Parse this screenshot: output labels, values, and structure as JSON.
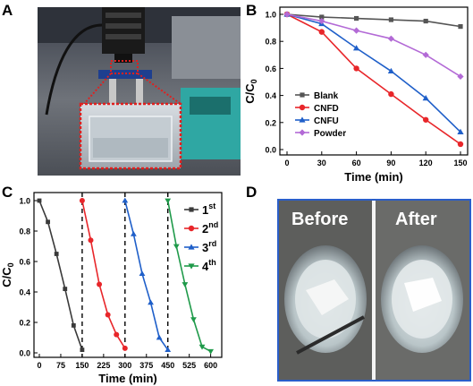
{
  "panels": {
    "a": {
      "letter": "A"
    },
    "b": {
      "letter": "B"
    },
    "c": {
      "letter": "C"
    },
    "d": {
      "letter": "D",
      "before_label": "Before",
      "after_label": "After"
    }
  },
  "chart_data": [
    {
      "type": "line",
      "panel": "B",
      "xlabel": "Time (min)",
      "ylabel_main": "C/C",
      "ylabel_sub": "0",
      "xlim": [
        0,
        150
      ],
      "ylim": [
        0,
        1.0
      ],
      "x_ticks": [
        0,
        30,
        60,
        90,
        120,
        150
      ],
      "y_ticks": [
        "0.0",
        "0.2",
        "0.4",
        "0.6",
        "0.8",
        "1.0"
      ],
      "x": [
        0,
        30,
        60,
        90,
        120,
        150
      ],
      "legend_position": "left",
      "series": [
        {
          "name": "Blank",
          "color": "#555555",
          "marker": "square",
          "values": [
            1.0,
            0.98,
            0.97,
            0.96,
            0.95,
            0.91
          ]
        },
        {
          "name": "CNFD",
          "color": "#e8262a",
          "marker": "circle",
          "values": [
            1.0,
            0.87,
            0.6,
            0.41,
            0.22,
            0.04
          ]
        },
        {
          "name": "CNFU",
          "color": "#1f5fc9",
          "marker": "triangle",
          "values": [
            1.0,
            0.93,
            0.75,
            0.58,
            0.38,
            0.13
          ]
        },
        {
          "name": "Powder",
          "color": "#b36ad6",
          "marker": "diamond",
          "values": [
            1.0,
            0.95,
            0.88,
            0.82,
            0.7,
            0.54
          ]
        }
      ]
    },
    {
      "type": "line",
      "panel": "C",
      "xlabel": "Time (min)",
      "ylabel_main": "C/C",
      "ylabel_sub": "0",
      "xlim": [
        0,
        620
      ],
      "ylim": [
        0,
        1.0
      ],
      "x_ticks": [
        0,
        75,
        150,
        225,
        300,
        375,
        450,
        525,
        600
      ],
      "y_ticks": [
        "0.0",
        "0.2",
        "0.4",
        "0.6",
        "0.8",
        "1.0"
      ],
      "cycle_boundaries": [
        150,
        300,
        450
      ],
      "legend_position": "right",
      "series": [
        {
          "name": "1",
          "sup": "st",
          "color": "#3a3a3a",
          "marker": "square",
          "x": [
            0,
            30,
            60,
            90,
            120,
            150
          ],
          "values": [
            1.0,
            0.86,
            0.65,
            0.42,
            0.18,
            0.02
          ]
        },
        {
          "name": "2",
          "sup": "nd",
          "color": "#e8262a",
          "marker": "circle",
          "x": [
            150,
            180,
            210,
            240,
            270,
            300
          ],
          "values": [
            1.0,
            0.74,
            0.45,
            0.25,
            0.12,
            0.03
          ]
        },
        {
          "name": "3",
          "sup": "rd",
          "color": "#1f5fc9",
          "marker": "triangle",
          "x": [
            300,
            330,
            360,
            390,
            420,
            450
          ],
          "values": [
            1.0,
            0.78,
            0.52,
            0.33,
            0.1,
            0.02
          ]
        },
        {
          "name": "4",
          "sup": "th",
          "color": "#1f9a4a",
          "marker": "invtriangle",
          "x": [
            450,
            480,
            510,
            540,
            570,
            600
          ],
          "values": [
            1.0,
            0.7,
            0.45,
            0.22,
            0.04,
            0.01
          ]
        }
      ]
    }
  ]
}
